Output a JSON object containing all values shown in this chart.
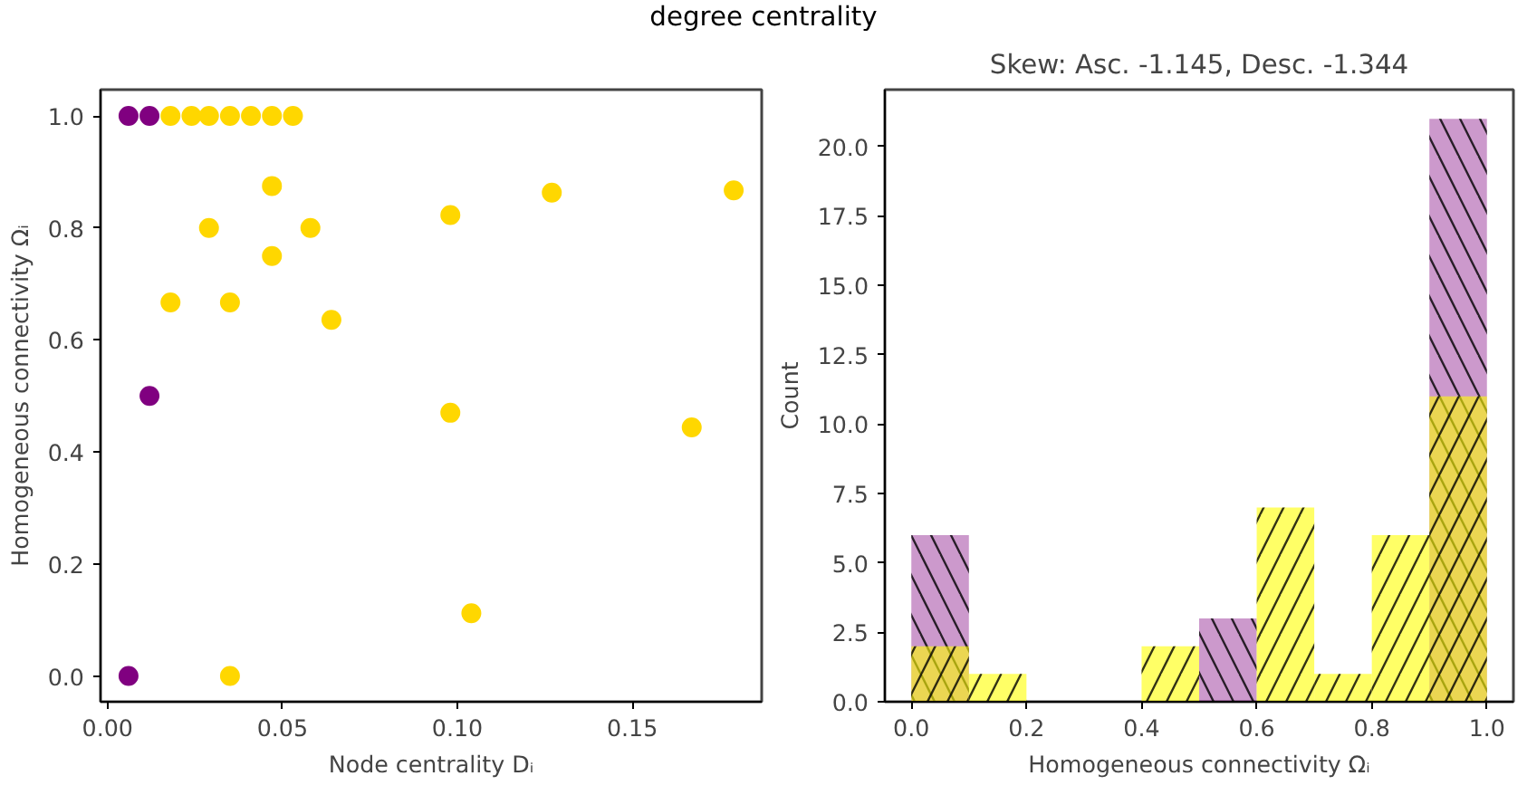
{
  "chart_data": [
    {
      "type": "scatter",
      "title": "degree centrality",
      "xlabel": "Node centrality Dᵢ",
      "ylabel": "Homogeneous connectivity Ωᵢ",
      "xlim": [
        -0.002,
        0.187
      ],
      "ylim": [
        -0.046,
        1.047
      ],
      "xticks": [
        {
          "value": 0,
          "label": "0.00"
        },
        0.05,
        {
          "value": 0.1,
          "label": "0.10"
        },
        0.15
      ],
      "yticks": [
        {
          "value": 0,
          "label": "0.0"
        },
        0.2,
        0.4,
        0.6,
        0.8,
        {
          "value": 1,
          "label": "1.0"
        }
      ],
      "grid": false,
      "marker": "circle",
      "series": [
        {
          "color": "#ffd700",
          "x": [
            0.018,
            0.024,
            0.029,
            0.035,
            0.041,
            0.047,
            0.053,
            0.047,
            0.029,
            0.058,
            0.047,
            0.018,
            0.035,
            0.064,
            0.098,
            0.127,
            0.179,
            0.098,
            0.167,
            0.104,
            0.035
          ],
          "values": [
            1.0,
            1.0,
            1.0,
            1.0,
            1.0,
            1.0,
            1.0,
            0.875,
            0.8,
            0.8,
            0.75,
            0.667,
            0.667,
            0.636,
            0.823,
            0.863,
            0.867,
            0.47,
            0.444,
            0.112,
            0.0
          ]
        },
        {
          "color": "#800080",
          "x": [
            0.006,
            0.012,
            0.012,
            0.006
          ],
          "values": [
            1.0,
            1.0,
            0.5,
            0.0
          ]
        }
      ]
    },
    {
      "type": "histogram",
      "title": "Skew: Asc. -1.145, Desc. -1.344",
      "xlabel": "Homogeneous connectivity Ωᵢ",
      "ylabel": "Count",
      "xlim": [
        -0.046,
        1.046
      ],
      "ylim": [
        0,
        22.05
      ],
      "xticks": [
        {
          "value": 0,
          "label": "0.0"
        },
        0.2,
        0.4,
        0.6,
        0.8,
        {
          "value": 1,
          "label": "1.0"
        }
      ],
      "yticks": [
        {
          "value": 0,
          "label": "0.0"
        },
        2.5,
        {
          "value": 5,
          "label": "5.0"
        },
        7.5,
        {
          "value": 10,
          "label": "10.0"
        },
        12.5,
        {
          "value": 15,
          "label": "15.0"
        },
        17.5,
        {
          "value": 20,
          "label": "20.0"
        }
      ],
      "grid": false,
      "bins": [
        0.0,
        0.1,
        0.2,
        0.3,
        0.4,
        0.5,
        0.6,
        0.7,
        0.8,
        0.9,
        1.0
      ],
      "series": [
        {
          "color": "#800080",
          "values": [
            6,
            0,
            0,
            0,
            0,
            3,
            0,
            0,
            0,
            21
          ]
        },
        {
          "color": "#ffff00",
          "values": [
            2,
            1,
            0,
            0,
            2,
            0,
            7,
            1,
            6,
            11
          ]
        }
      ]
    }
  ]
}
